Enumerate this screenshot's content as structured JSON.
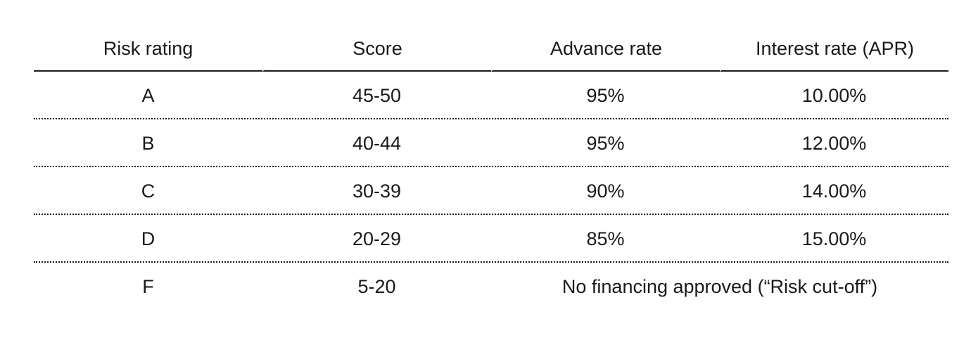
{
  "table": {
    "headers": [
      "Risk rating",
      "Score",
      "Advance rate",
      "Interest rate (APR)"
    ],
    "rows": [
      {
        "rating": "A",
        "score": "45-50",
        "advance": "95%",
        "apr": "10.00%"
      },
      {
        "rating": "B",
        "score": "40-44",
        "advance": "95%",
        "apr": "12.00%"
      },
      {
        "rating": "C",
        "score": "30-39",
        "advance": "90%",
        "apr": "14.00%"
      },
      {
        "rating": "D",
        "score": "20-29",
        "advance": "85%",
        "apr": "15.00%"
      },
      {
        "rating": "F",
        "score": "5-20",
        "note": "No financing approved (“Risk cut-off”)"
      }
    ]
  }
}
